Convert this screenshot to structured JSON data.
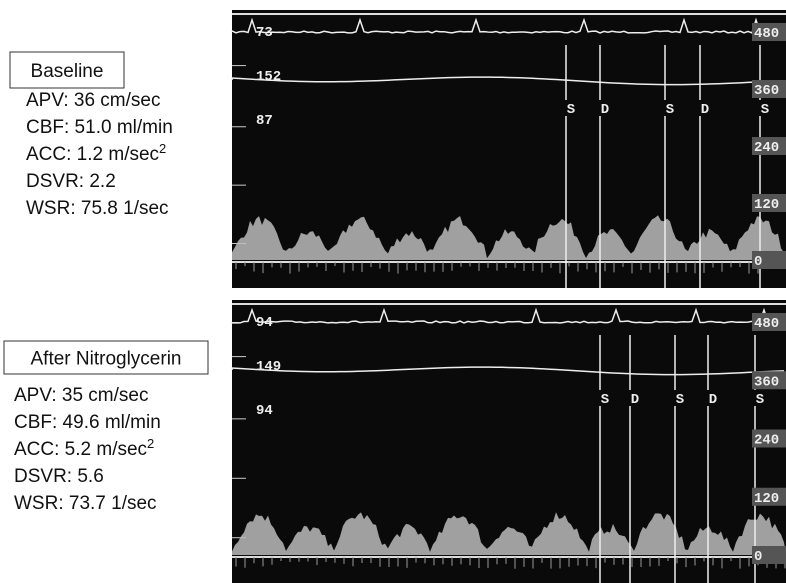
{
  "panels": [
    {
      "label": "Baseline",
      "metrics": [
        {
          "text": "APV: 36 cm/sec"
        },
        {
          "text": "CBF: 51.0 ml/min"
        },
        {
          "text": "ACC: 1.2 m/sec",
          "sup": "2"
        },
        {
          "text": "DSVR: 2.2"
        },
        {
          "text": "WSR: 75.8 1/sec"
        }
      ],
      "readouts": [
        "73",
        "152",
        "87"
      ],
      "scale": [
        "480",
        "360",
        "240",
        "120",
        "0"
      ],
      "markers": [
        "S",
        "D",
        "S",
        "D",
        "S"
      ]
    },
    {
      "label": "After Nitroglycerin",
      "metrics": [
        {
          "text": "APV: 35 cm/sec"
        },
        {
          "text": "CBF: 49.6 ml/min"
        },
        {
          "text": "ACC: 5.2 m/sec",
          "sup": "2"
        },
        {
          "text": "DSVR: 5.6"
        },
        {
          "text": "WSR: 73.7 1/sec"
        }
      ],
      "readouts": [
        "94",
        "149",
        "94"
      ],
      "scale": [
        "480",
        "360",
        "240",
        "120",
        "0"
      ],
      "markers": [
        "S",
        "D",
        "S",
        "D",
        "S"
      ]
    }
  ]
}
